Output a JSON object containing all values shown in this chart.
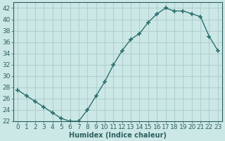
{
  "x": [
    0,
    1,
    2,
    3,
    4,
    5,
    6,
    7,
    8,
    9,
    10,
    11,
    12,
    13,
    14,
    15,
    16,
    17,
    18,
    19,
    20,
    21,
    22,
    23
  ],
  "y": [
    27.5,
    26.5,
    25.5,
    24.5,
    23.5,
    22.5,
    22.0,
    22.0,
    24.0,
    26.5,
    29.0,
    32.0,
    34.5,
    36.5,
    37.5,
    39.5,
    41.0,
    42.0,
    41.5,
    41.5,
    41.0,
    40.5,
    37.0,
    34.5
  ],
  "line_color": "#2d7070",
  "marker": "+",
  "marker_size": 4,
  "marker_linewidth": 1.2,
  "bg_color": "#cce8e6",
  "grid_color": "#b0d0ce",
  "xlabel": "Humidex (Indice chaleur)",
  "ylim": [
    22,
    43
  ],
  "xlim_min": -0.5,
  "xlim_max": 23.5,
  "yticks": [
    22,
    24,
    26,
    28,
    30,
    32,
    34,
    36,
    38,
    40,
    42
  ],
  "xticks": [
    0,
    1,
    2,
    3,
    4,
    5,
    6,
    7,
    8,
    9,
    10,
    11,
    12,
    13,
    14,
    15,
    16,
    17,
    18,
    19,
    20,
    21,
    22,
    23
  ],
  "font_size": 6.5,
  "label_color": "#2d6060",
  "tick_color": "#2d6060",
  "spine_color": "#2d6060",
  "linewidth": 1.0
}
